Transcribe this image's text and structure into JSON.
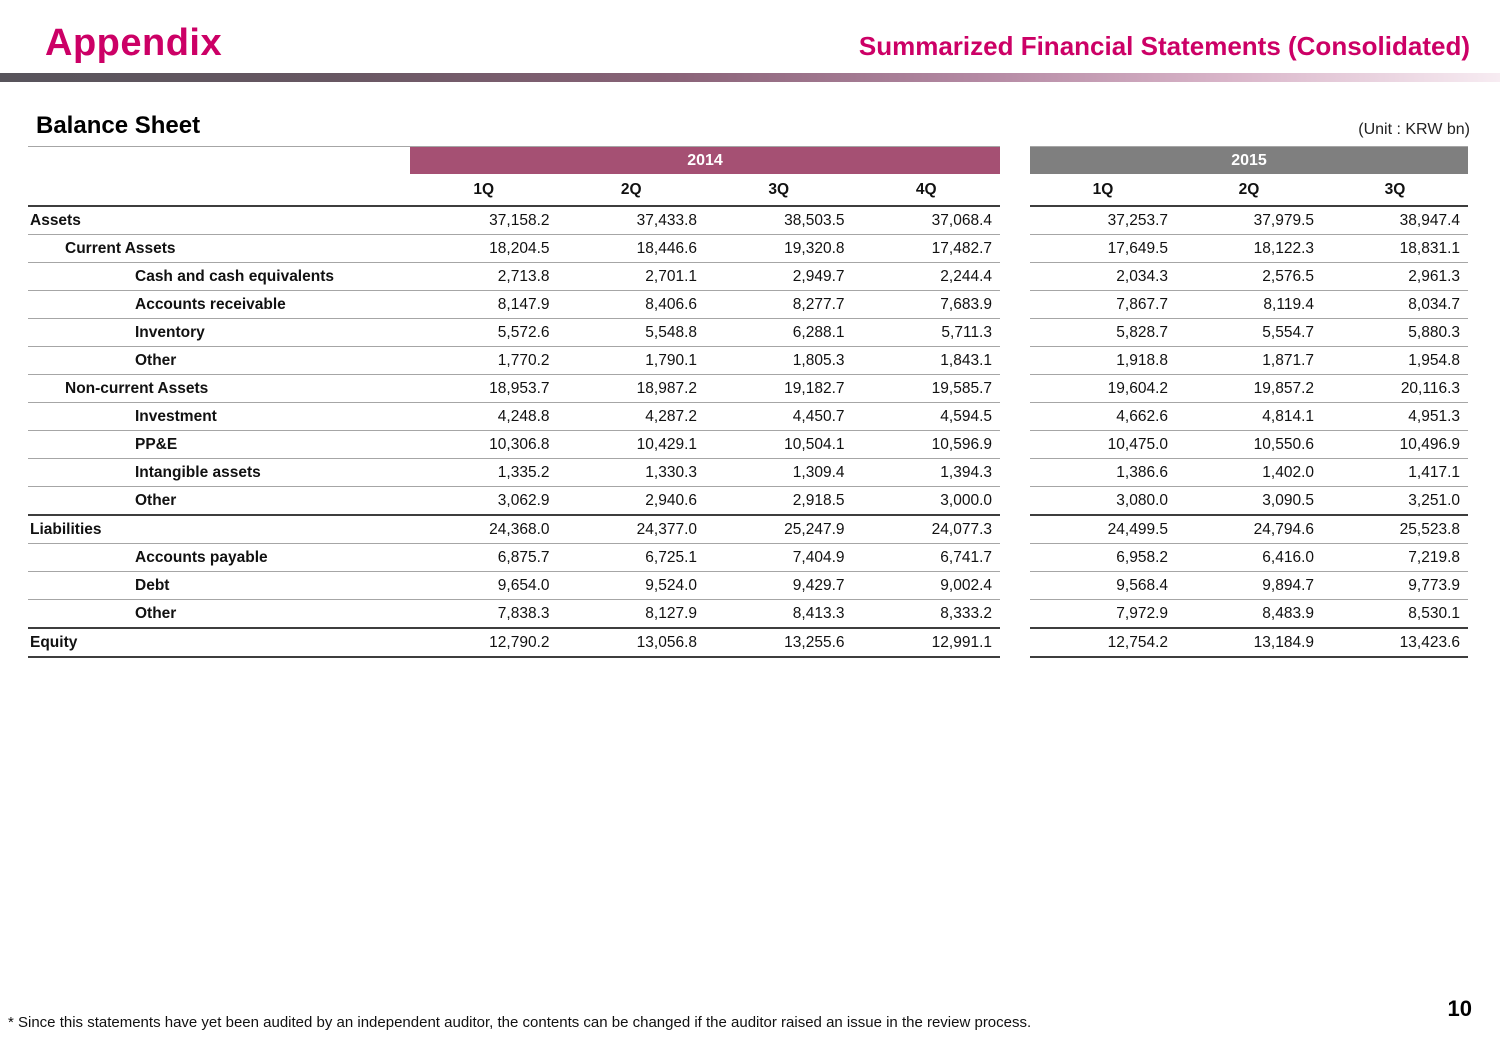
{
  "header": {
    "title": "Appendix",
    "subtitle": "Summarized Financial Statements (Consolidated)"
  },
  "section": {
    "title": "Balance Sheet",
    "unit": "(Unit : KRW bn)"
  },
  "colors": {
    "accent": "#CC0066",
    "band_2014": "#A55073",
    "band_2015": "#7F7F7F"
  },
  "table": {
    "groups": [
      {
        "label": "2014",
        "quarters": [
          "1Q",
          "2Q",
          "3Q",
          "4Q"
        ]
      },
      {
        "label": "2015",
        "quarters": [
          "1Q",
          "2Q",
          "3Q"
        ]
      }
    ],
    "rows": [
      {
        "label": "Assets",
        "indent": 0,
        "values_2014": [
          "37,158.2",
          "37,433.8",
          "38,503.5",
          "37,068.4"
        ],
        "values_2015": [
          "37,253.7",
          "37,979.5",
          "38,947.4"
        ]
      },
      {
        "label": "Current Assets",
        "indent": 1,
        "values_2014": [
          "18,204.5",
          "18,446.6",
          "19,320.8",
          "17,482.7"
        ],
        "values_2015": [
          "17,649.5",
          "18,122.3",
          "18,831.1"
        ]
      },
      {
        "label": "Cash and cash equivalents",
        "indent": 2,
        "values_2014": [
          "2,713.8",
          "2,701.1",
          "2,949.7",
          "2,244.4"
        ],
        "values_2015": [
          "2,034.3",
          "2,576.5",
          "2,961.3"
        ]
      },
      {
        "label": "Accounts receivable",
        "indent": 2,
        "values_2014": [
          "8,147.9",
          "8,406.6",
          "8,277.7",
          "7,683.9"
        ],
        "values_2015": [
          "7,867.7",
          "8,119.4",
          "8,034.7"
        ]
      },
      {
        "label": "Inventory",
        "indent": 2,
        "values_2014": [
          "5,572.6",
          "5,548.8",
          "6,288.1",
          "5,711.3"
        ],
        "values_2015": [
          "5,828.7",
          "5,554.7",
          "5,880.3"
        ]
      },
      {
        "label": "Other",
        "indent": 2,
        "values_2014": [
          "1,770.2",
          "1,790.1",
          "1,805.3",
          "1,843.1"
        ],
        "values_2015": [
          "1,918.8",
          "1,871.7",
          "1,954.8"
        ]
      },
      {
        "label": "Non-current Assets",
        "indent": 1,
        "values_2014": [
          "18,953.7",
          "18,987.2",
          "19,182.7",
          "19,585.7"
        ],
        "values_2015": [
          "19,604.2",
          "19,857.2",
          "20,116.3"
        ]
      },
      {
        "label": "Investment",
        "indent": 2,
        "values_2014": [
          "4,248.8",
          "4,287.2",
          "4,450.7",
          "4,594.5"
        ],
        "values_2015": [
          "4,662.6",
          "4,814.1",
          "4,951.3"
        ]
      },
      {
        "label": "PP&E",
        "indent": 2,
        "values_2014": [
          "10,306.8",
          "10,429.1",
          "10,504.1",
          "10,596.9"
        ],
        "values_2015": [
          "10,475.0",
          "10,550.6",
          "10,496.9"
        ]
      },
      {
        "label": "Intangible assets",
        "indent": 2,
        "values_2014": [
          "1,335.2",
          "1,330.3",
          "1,309.4",
          "1,394.3"
        ],
        "values_2015": [
          "1,386.6",
          "1,402.0",
          "1,417.1"
        ]
      },
      {
        "label": "Other",
        "indent": 2,
        "values_2014": [
          "3,062.9",
          "2,940.6",
          "2,918.5",
          "3,000.0"
        ],
        "values_2015": [
          "3,080.0",
          "3,090.5",
          "3,251.0"
        ]
      },
      {
        "label": "Liabilities",
        "indent": 0,
        "values_2014": [
          "24,368.0",
          "24,377.0",
          "25,247.9",
          "24,077.3"
        ],
        "values_2015": [
          "24,499.5",
          "24,794.6",
          "25,523.8"
        ]
      },
      {
        "label": "Accounts payable",
        "indent": 2,
        "values_2014": [
          "6,875.7",
          "6,725.1",
          "7,404.9",
          "6,741.7"
        ],
        "values_2015": [
          "6,958.2",
          "6,416.0",
          "7,219.8"
        ]
      },
      {
        "label": "Debt",
        "indent": 2,
        "values_2014": [
          "9,654.0",
          "9,524.0",
          "9,429.7",
          "9,002.4"
        ],
        "values_2015": [
          "9,568.4",
          "9,894.7",
          "9,773.9"
        ]
      },
      {
        "label": "Other",
        "indent": 2,
        "values_2014": [
          "7,838.3",
          "8,127.9",
          "8,413.3",
          "8,333.2"
        ],
        "values_2015": [
          "7,972.9",
          "8,483.9",
          "8,530.1"
        ]
      },
      {
        "label": "Equity",
        "indent": 0,
        "values_2014": [
          "12,790.2",
          "13,056.8",
          "13,255.6",
          "12,991.1"
        ],
        "values_2015": [
          "12,754.2",
          "13,184.9",
          "13,423.6"
        ]
      }
    ]
  },
  "footer": {
    "note": "* Since this statements have yet been audited by an independent auditor, the contents can be changed if the auditor raised an issue in the review process.",
    "page_number": "10"
  }
}
